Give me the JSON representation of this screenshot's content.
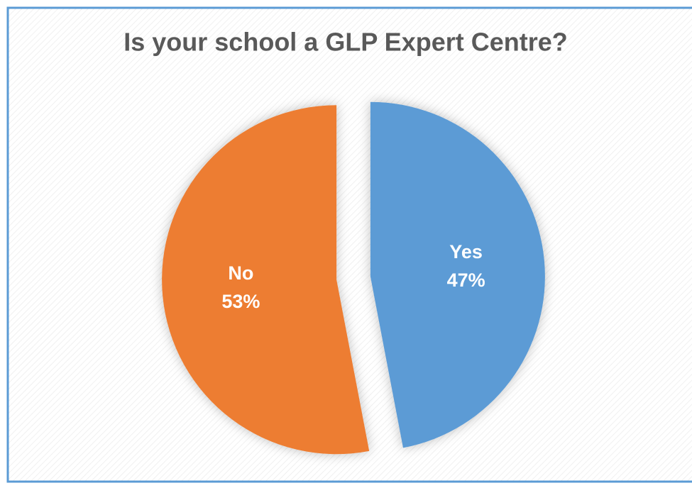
{
  "chart_data": {
    "type": "pie",
    "title": "Is your school a GLP Expert Centre?",
    "categories": [
      "Yes",
      "No"
    ],
    "values": [
      47,
      53
    ],
    "value_labels": [
      "47%",
      "53%"
    ],
    "colors": [
      "#5b9bd5",
      "#ed7d31"
    ]
  }
}
